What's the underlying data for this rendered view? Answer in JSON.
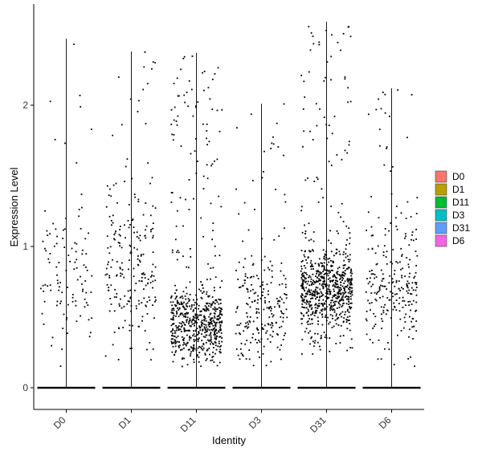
{
  "chart_data": {
    "type": "scatter",
    "subtype": "violin-jitter",
    "title": "",
    "xlabel": "Identity",
    "ylabel": "Expression Level",
    "ylim": [
      -0.15,
      2.62
    ],
    "yticks": [
      0,
      1,
      2
    ],
    "grid": false,
    "legend_position": "right",
    "categories": [
      "D0",
      "D1",
      "D11",
      "D3",
      "D31",
      "D6"
    ],
    "series": [
      {
        "name": "D0",
        "color": "#F8766D",
        "max": 2.47,
        "nonzero_points": 110,
        "center": 0.75,
        "spread": 0.55
      },
      {
        "name": "D1",
        "color": "#B79F00",
        "max": 2.38,
        "nonzero_points": 220,
        "center": 0.85,
        "spread": 0.55
      },
      {
        "name": "D11",
        "color": "#00BA38",
        "max": 2.37,
        "nonzero_points": 650,
        "center": 0.45,
        "spread": 0.3
      },
      {
        "name": "D3",
        "color": "#00BFC4",
        "max": 2.01,
        "nonzero_points": 230,
        "center": 0.55,
        "spread": 0.45
      },
      {
        "name": "D31",
        "color": "#619CFF",
        "max": 2.59,
        "nonzero_points": 750,
        "center": 0.7,
        "spread": 0.32
      },
      {
        "name": "D6",
        "color": "#F564E3",
        "max": 2.12,
        "nonzero_points": 250,
        "center": 0.7,
        "spread": 0.45
      }
    ]
  }
}
